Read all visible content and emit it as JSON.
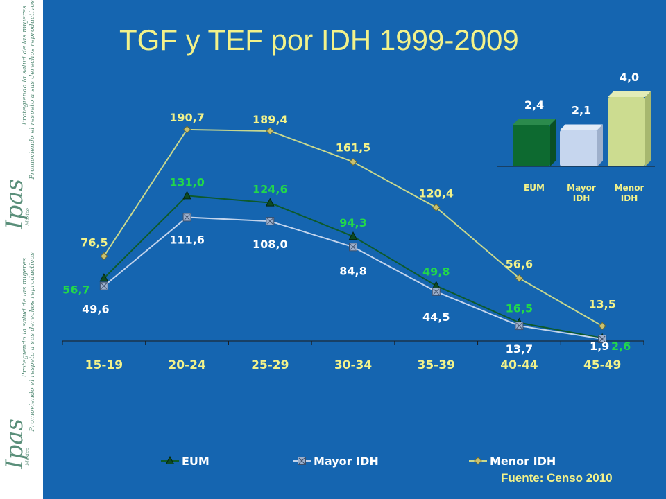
{
  "title": "TGF y TEF  por IDH 1999-2009",
  "source": "Fuente:  Censo 2010",
  "sidebar": {
    "tagline_1": "Protegiendo la salud de las mujeres",
    "tagline_2": "Promoviendo el respeto a sus derechos reproductivos",
    "logo_text": "Ipas",
    "logo_sub": "México"
  },
  "colors": {
    "background": "#1565b0",
    "title": "#f2f28a",
    "eum": "#0d5a2b",
    "mayor": "#c3d4ec",
    "menor": "#c8d88e",
    "label_green": "#22d84a",
    "label_yellow": "#f2f28a",
    "label_white": "#ffffff",
    "bar_eum": "#0d6a30",
    "bar_mayor": "#c6d6ee",
    "bar_menor": "#ccdc90"
  },
  "chart_data": [
    {
      "type": "line",
      "categories": [
        "15-19",
        "20-24",
        "25-29",
        "30-34",
        "35-39",
        "40-44",
        "45-49"
      ],
      "series": [
        {
          "name": "EUM",
          "values": [
            56.7,
            131.0,
            124.6,
            94.3,
            49.8,
            16.5,
            2.6
          ],
          "labels": [
            "56,7",
            "131,0",
            "124,6",
            "94,3",
            "49,8",
            "16,5",
            "2,6"
          ],
          "marker": "triangle"
        },
        {
          "name": "Mayor IDH",
          "values": [
            49.6,
            111.6,
            108.0,
            84.8,
            44.5,
            13.7,
            1.9
          ],
          "labels": [
            "49,6",
            "111,6",
            "108,0",
            "84,8",
            "44,5",
            "13,7",
            "1,9"
          ],
          "marker": "square"
        },
        {
          "name": "Menor IDH",
          "values": [
            76.5,
            190.7,
            189.4,
            161.5,
            120.4,
            56.6,
            13.5
          ],
          "labels": [
            "76,5",
            "190,7",
            "189,4",
            "161,5",
            "120,4",
            "56,6",
            "13,5"
          ],
          "marker": "diamond"
        }
      ],
      "legend_position": "bottom",
      "grid": false,
      "ylim": [
        0,
        205
      ]
    },
    {
      "type": "bar",
      "categories": [
        "EUM",
        "Mayor IDH",
        "Menor IDH"
      ],
      "category_lines": [
        [
          "EUM"
        ],
        [
          "Mayor",
          "IDH"
        ],
        [
          "Menor",
          "IDH"
        ]
      ],
      "values": [
        2.4,
        2.1,
        4.0
      ],
      "labels": [
        "2,4",
        "2,1",
        "4,0"
      ],
      "ylim": [
        0,
        4.0
      ]
    }
  ]
}
